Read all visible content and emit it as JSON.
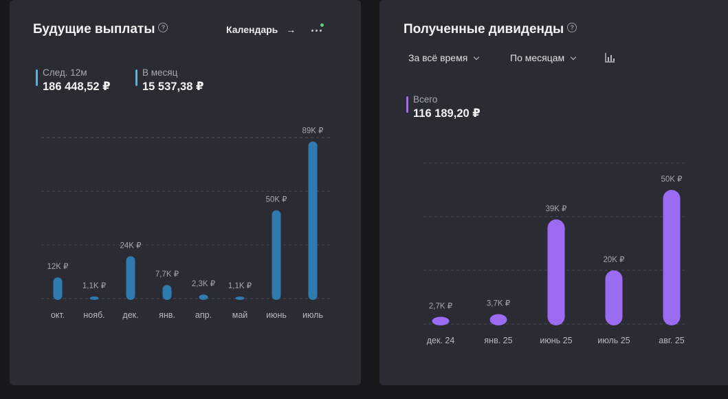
{
  "left": {
    "title": "Будущие выплаты",
    "help": "?",
    "calendar_link": "Календарь",
    "stats": [
      {
        "label": "След. 12м",
        "value": "186 448,52 ₽",
        "color": "#5fb3d8"
      },
      {
        "label": "В месяц",
        "value": "15 537,38 ₽",
        "color": "#5fb3d8"
      }
    ]
  },
  "right": {
    "title": "Полученные дивиденды",
    "help": "?",
    "period_select": "За всё время",
    "grouping_select": "По месяцам",
    "stats": [
      {
        "label": "Всего",
        "value": "116 189,20 ₽",
        "color": "#9b6cf2"
      }
    ]
  },
  "chart_data": [
    {
      "type": "bar",
      "color": "#2f7bb0",
      "categories": [
        "окт.",
        "нояб.",
        "дек.",
        "янв.",
        "апр.",
        "май",
        "июнь",
        "июль"
      ],
      "values": [
        12000,
        1100,
        24000,
        7700,
        2300,
        1100,
        50000,
        89000
      ],
      "data_labels": [
        "12K ₽",
        "1,1K ₽",
        "24K ₽",
        "7,7K ₽",
        "2,3K ₽",
        "1,1K ₽",
        "50K ₽",
        "89K ₽"
      ],
      "ylim": [
        0,
        90000
      ],
      "grid": true
    },
    {
      "type": "bar",
      "color": "#9b6cf2",
      "categories": [
        "дек. 24",
        "янв. 25",
        "июнь 25",
        "июль 25",
        "авг. 25"
      ],
      "values": [
        2700,
        3700,
        39000,
        20000,
        50000
      ],
      "data_labels": [
        "2,7K ₽",
        "3,7K ₽",
        "39K ₽",
        "20K ₽",
        "50K ₽"
      ],
      "ylim": [
        0,
        60000
      ],
      "grid": true
    }
  ]
}
